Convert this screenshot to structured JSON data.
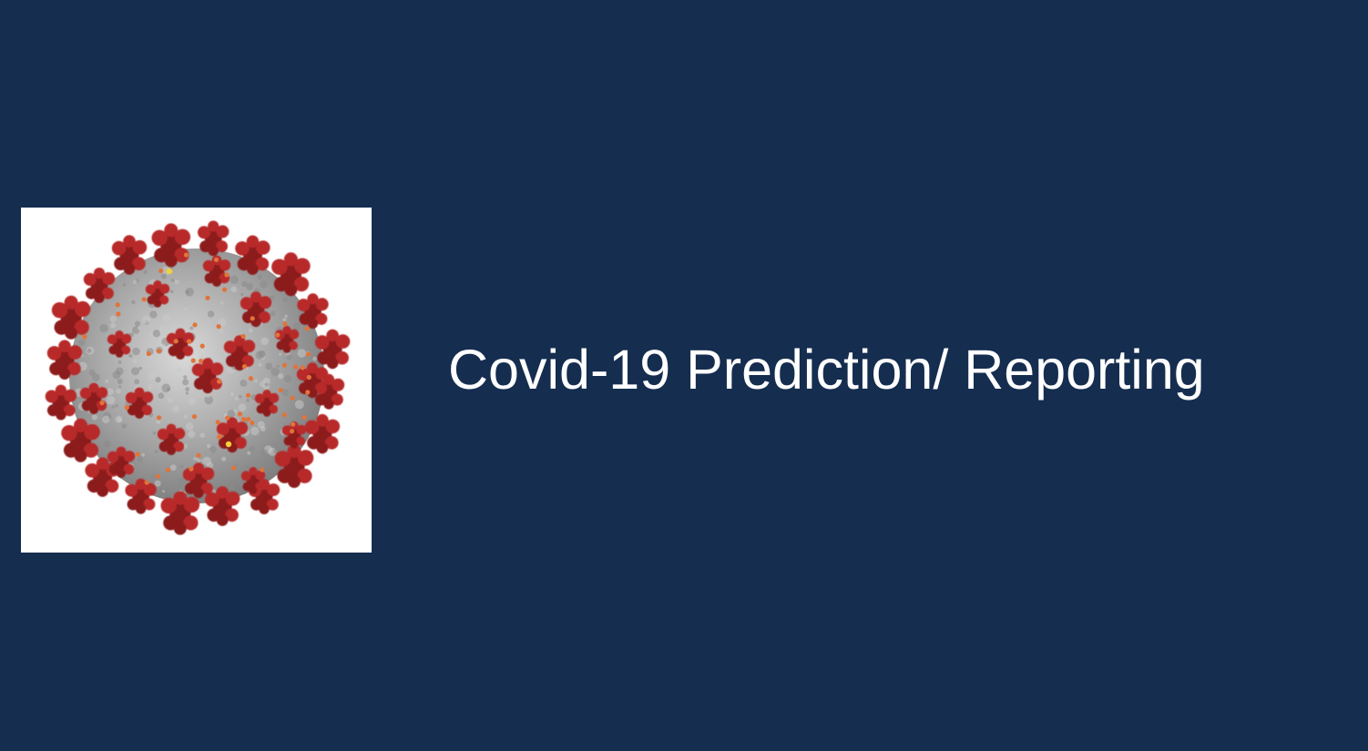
{
  "slide": {
    "title": "Covid-19 Prediction/ Reporting",
    "image": {
      "icon": "coronavirus-illustration-icon"
    }
  },
  "colors": {
    "background": "#152d4f",
    "title_text": "#ffffff",
    "image_background": "#ffffff",
    "virus_body": "#a3a3a3",
    "spike": "#b8292b",
    "spike_dark": "#8c1c1e",
    "protein_dot": "#e0743a",
    "highlight_dot": "#f2d13a"
  }
}
